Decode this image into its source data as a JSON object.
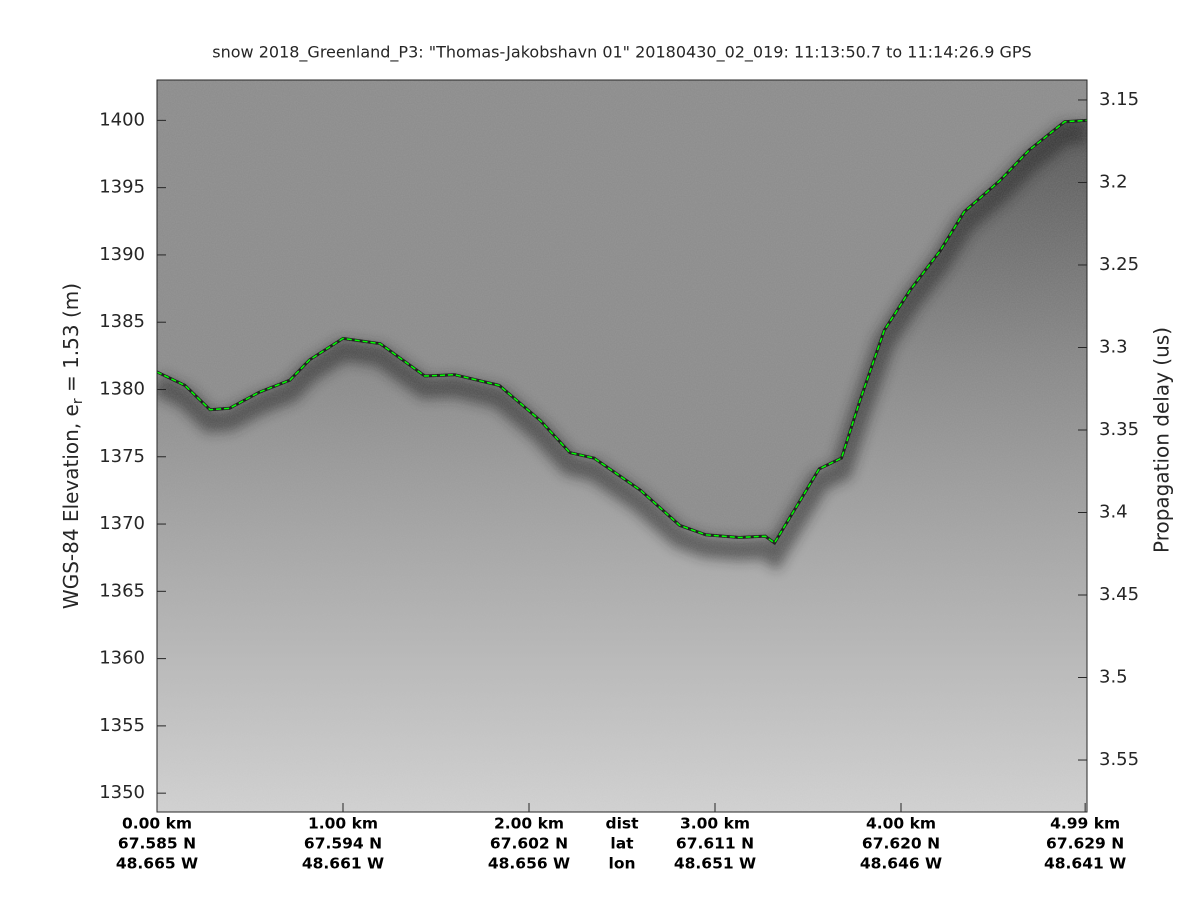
{
  "chart_data": {
    "type": "line",
    "title": "snow 2018_Greenland_P3: \"Thomas-Jakobshavn 01\"  20180430_02_019: 11:13:50.7 to 11:14:26.9 GPS",
    "ylabel": {
      "text": "WGS-84 Elevation, e",
      "subscript": "r",
      "suffix": " = 1.53 (m)"
    },
    "y2label": "Propagation delay (us)",
    "x": [
      0,
      0.15,
      0.285,
      0.39,
      0.55,
      0.715,
      0.82,
      1.0,
      1.2,
      1.36,
      1.44,
      1.6,
      1.84,
      2.06,
      2.22,
      2.35,
      2.6,
      2.81,
      2.95,
      3.13,
      3.27,
      3.32,
      3.46,
      3.56,
      3.68,
      3.78,
      3.91,
      4.05,
      4.21,
      4.34,
      4.53,
      4.69,
      4.88,
      5.0
    ],
    "values": [
      1381.3,
      1380.3,
      1378.5,
      1378.6,
      1379.8,
      1380.7,
      1382.2,
      1383.8,
      1383.4,
      1381.8,
      1381.0,
      1381.1,
      1380.3,
      1377.7,
      1375.3,
      1374.9,
      1372.5,
      1369.9,
      1369.2,
      1369.0,
      1369.1,
      1368.6,
      1371.8,
      1374.1,
      1374.9,
      1379.2,
      1384.4,
      1387.4,
      1390.3,
      1393.2,
      1395.5,
      1397.8,
      1399.9,
      1400.0
    ],
    "color": "#00ff00",
    "xlim": [
      0,
      5.0
    ],
    "ylim": [
      1348.6,
      1403.0
    ],
    "yticks": [
      1350,
      1355,
      1360,
      1365,
      1370,
      1375,
      1380,
      1385,
      1390,
      1395,
      1400
    ],
    "y2lim": [
      3.5815,
      3.1379
    ],
    "y2ticks": [
      3.15,
      3.2,
      3.25,
      3.3,
      3.35,
      3.4,
      3.45,
      3.5,
      3.55
    ],
    "xticks": [
      {
        "value": 0,
        "label": "0.00 km"
      },
      {
        "value": 1,
        "label": "1.00 km"
      },
      {
        "value": 2,
        "label": "2.00 km"
      },
      {
        "value": 3,
        "label": "3.00 km"
      },
      {
        "value": 4,
        "label": "4.00 km"
      },
      {
        "value": 4.99,
        "label": "4.99 km"
      }
    ],
    "xtick_lat": [
      "67.585 N",
      "67.594 N",
      "67.602 N",
      "67.611 N",
      "67.620 N",
      "67.629 N"
    ],
    "xtick_lon": [
      "48.665 W",
      "48.661 W",
      "48.656 W",
      "48.651 W",
      "48.646 W",
      "48.641 W"
    ],
    "row_labels": [
      "dist",
      "lat",
      "lon"
    ]
  }
}
